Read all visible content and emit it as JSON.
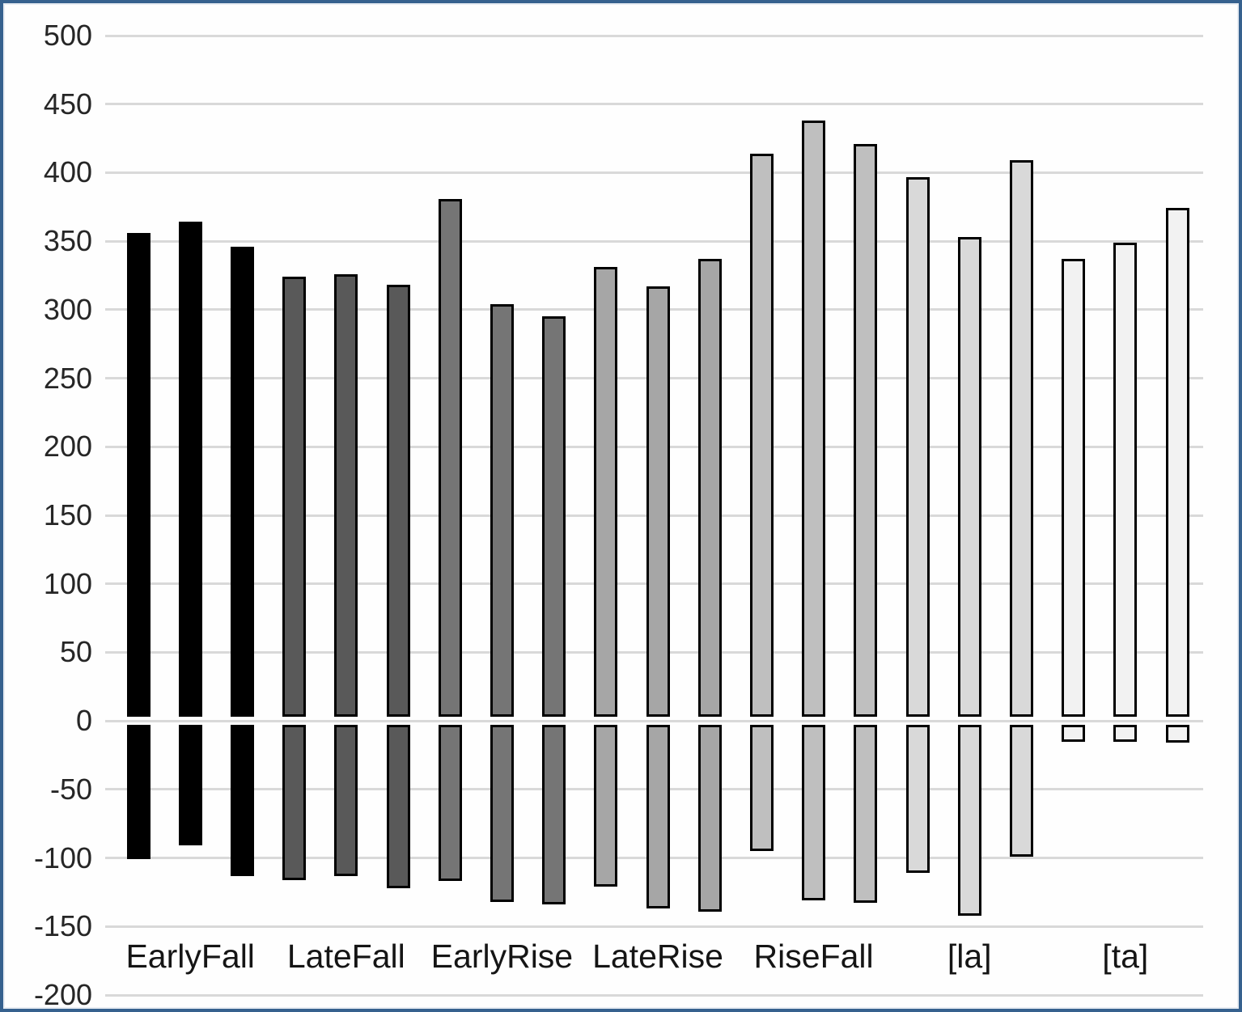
{
  "chart_data": {
    "type": "bar",
    "title": "",
    "xlabel": "",
    "ylabel": "",
    "ylim": [
      -200,
      500
    ],
    "y_step": 50,
    "grid": true,
    "legend": false,
    "y_tick_labels": [
      "500",
      "450",
      "400",
      "350",
      "300",
      "250",
      "200",
      "150",
      "100",
      "50",
      "0",
      "-50",
      "-100",
      "-150",
      "-200"
    ],
    "categories": [
      "EarlyFall",
      "LateFall",
      "EarlyRise",
      "LateRise",
      "RiseFall",
      "[la]",
      "[ta]"
    ],
    "bars_per_category": 3,
    "description": "Each category shows three floating bars; every bar spans from a negative minimum up to a positive maximum (values in axis units).",
    "groups": [
      {
        "label": "EarlyFall",
        "color": "#000000",
        "bars": [
          {
            "max": 356,
            "min": -101
          },
          {
            "max": 364,
            "min": -91
          },
          {
            "max": 346,
            "min": -113
          }
        ]
      },
      {
        "label": "LateFall",
        "color": "#595959",
        "bars": [
          {
            "max": 324,
            "min": -116
          },
          {
            "max": 326,
            "min": -113
          },
          {
            "max": 318,
            "min": -122
          }
        ]
      },
      {
        "label": "EarlyRise",
        "color": "#757575",
        "bars": [
          {
            "max": 381,
            "min": -117
          },
          {
            "max": 304,
            "min": -132
          },
          {
            "max": 295,
            "min": -134
          }
        ]
      },
      {
        "label": "LateRise",
        "color": "#a6a6a6",
        "bars": [
          {
            "max": 331,
            "min": -121
          },
          {
            "max": 317,
            "min": -137
          },
          {
            "max": 337,
            "min": -139
          }
        ]
      },
      {
        "label": "RiseFall",
        "color": "#bfbfbf",
        "bars": [
          {
            "max": 414,
            "min": -95
          },
          {
            "max": 438,
            "min": -131
          },
          {
            "max": 421,
            "min": -133
          }
        ]
      },
      {
        "label": "[la]",
        "color": "#d9d9d9",
        "bars": [
          {
            "max": 397,
            "min": -111
          },
          {
            "max": 353,
            "min": -142
          },
          {
            "max": 409,
            "min": -99
          }
        ]
      },
      {
        "label": "[ta]",
        "color": "#f2f2f2",
        "bars": [
          {
            "max": 337,
            "min": -15
          },
          {
            "max": 349,
            "min": -15
          },
          {
            "max": 374,
            "min": -16
          }
        ]
      }
    ],
    "colors": {
      "frame_border": "#36618e",
      "gridline": "#d9d9d9",
      "bar_border": "#000000",
      "axis_text": "#262626",
      "background": "#fefefe"
    }
  }
}
